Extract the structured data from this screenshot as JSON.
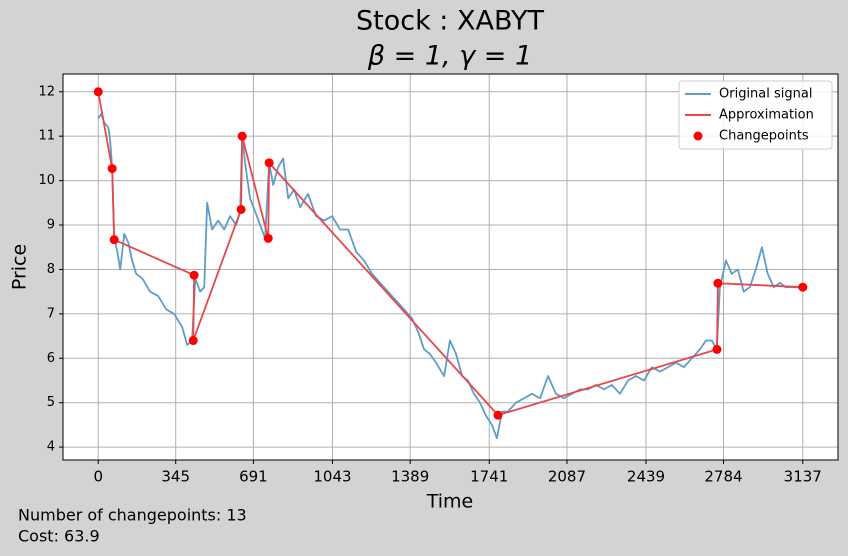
{
  "chart_data": {
    "type": "line",
    "title": "Stock : XABYT",
    "subtitle": "β = 1, γ = 1",
    "x_label": "Time",
    "y_label": "Price",
    "annotations": [
      "Number of changepoints: 13",
      "Cost: 63.9"
    ],
    "xlim": [
      -156.85,
      3293.85
    ],
    "ylim": [
      3.71,
      12.4
    ],
    "xticks": [
      0,
      345,
      691,
      1043,
      1389,
      1741,
      2087,
      2439,
      2784,
      3137
    ],
    "yticks": [
      4,
      5,
      6,
      7,
      8,
      9,
      10,
      11,
      12
    ],
    "grid": true,
    "legend": "upper right",
    "series": [
      {
        "name": "Original signal",
        "type": "line",
        "color": "#5f9dc9",
        "x": [
          0,
          13,
          27,
          45,
          53,
          62,
          71,
          85,
          98,
          116,
          134,
          151,
          169,
          196,
          231,
          267,
          303,
          338,
          374,
          396,
          418,
          432,
          454,
          472,
          485,
          507,
          534,
          561,
          587,
          614,
          632,
          641,
          654,
          676,
          699,
          721,
          743,
          761,
          779,
          801,
          823,
          846,
          872,
          899,
          934,
          970,
          1006,
          1041,
          1077,
          1113,
          1148,
          1184,
          1219,
          1255,
          1290,
          1326,
          1362,
          1397,
          1424,
          1451,
          1477,
          1504,
          1540,
          1566,
          1593,
          1620,
          1646,
          1673,
          1700,
          1727,
          1753,
          1775,
          1798,
          1824,
          1860,
          1896,
          1931,
          1967,
          2003,
          2038,
          2074,
          2109,
          2145,
          2181,
          2216,
          2252,
          2287,
          2323,
          2359,
          2394,
          2430,
          2465,
          2501,
          2537,
          2572,
          2608,
          2643,
          2679,
          2706,
          2732,
          2754,
          2768,
          2795,
          2821,
          2848,
          2874,
          2901,
          2928,
          2955,
          2981,
          3008,
          3035,
          3061,
          3088,
          3114,
          3137
        ],
        "values": [
          11.4,
          11.5,
          11.3,
          11.2,
          10.9,
          10.3,
          8.7,
          8.4,
          8.0,
          8.8,
          8.6,
          8.2,
          7.9,
          7.8,
          7.5,
          7.4,
          7.1,
          7.0,
          6.7,
          6.3,
          6.4,
          7.8,
          7.5,
          7.6,
          9.5,
          8.9,
          9.1,
          8.9,
          9.2,
          9.0,
          9.3,
          11.0,
          10.4,
          9.6,
          9.3,
          9.0,
          8.7,
          10.4,
          9.9,
          10.3,
          10.5,
          9.6,
          9.8,
          9.4,
          9.7,
          9.2,
          9.1,
          9.2,
          8.9,
          8.9,
          8.4,
          8.2,
          7.9,
          7.7,
          7.5,
          7.3,
          7.1,
          6.9,
          6.6,
          6.2,
          6.1,
          5.9,
          5.6,
          6.4,
          6.1,
          5.6,
          5.5,
          5.2,
          5.0,
          4.7,
          4.5,
          4.2,
          4.8,
          4.8,
          5.0,
          5.1,
          5.2,
          5.1,
          5.6,
          5.2,
          5.1,
          5.2,
          5.3,
          5.3,
          5.4,
          5.3,
          5.4,
          5.2,
          5.5,
          5.6,
          5.5,
          5.8,
          5.7,
          5.8,
          5.9,
          5.8,
          6.0,
          6.2,
          6.4,
          6.4,
          6.2,
          7.6,
          8.2,
          7.9,
          8.0,
          7.5,
          7.6,
          8.0,
          8.5,
          7.9,
          7.6,
          7.7,
          7.6,
          7.6,
          7.6,
          7.6
        ]
      },
      {
        "name": "Approximation",
        "type": "line",
        "color": "#e8474a",
        "x": [
          0,
          62,
          71,
          427,
          423,
          636,
          641,
          757,
          761,
          1780,
          2755,
          2759,
          3137
        ],
        "values": [
          12.0,
          10.27,
          8.67,
          7.87,
          6.4,
          9.35,
          11.0,
          8.7,
          10.4,
          4.72,
          6.2,
          7.69,
          7.6
        ]
      },
      {
        "name": "Changepoints",
        "type": "scatter",
        "color": "#ff0000",
        "x": [
          0,
          62,
          71,
          427,
          423,
          636,
          641,
          757,
          761,
          1780,
          2755,
          2759,
          3137
        ],
        "values": [
          12.0,
          10.27,
          8.67,
          7.87,
          6.4,
          9.35,
          11.0,
          8.7,
          10.4,
          4.72,
          6.2,
          7.69,
          7.6
        ]
      }
    ]
  }
}
